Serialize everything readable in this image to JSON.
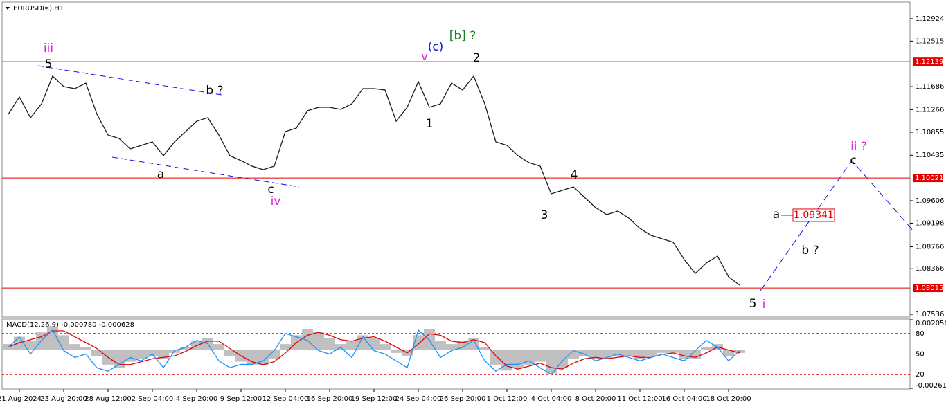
{
  "chart_data": [
    {
      "type": "line",
      "title": "EURUSD(€),H1",
      "categories": [
        null,
        "21 Aug 2024",
        null,
        null,
        null,
        "23 Aug 20:00",
        null,
        null,
        null,
        "28 Aug 12:00",
        null,
        null,
        null,
        "2 Sep 04:00",
        null,
        null,
        null,
        "4 Sep 20:00",
        null,
        null,
        null,
        "9 Sep 12:00",
        null,
        null,
        null,
        "12 Sep 04:00",
        null,
        null,
        null,
        "16 Sep 20:00",
        null,
        null,
        null,
        "19 Sep 12:00",
        null,
        null,
        null,
        "24 Sep 04:00",
        null,
        null,
        null,
        "26 Sep 20:00",
        null,
        null,
        null,
        "1 Oct 12:00",
        null,
        null,
        null,
        "4 Oct 04:00",
        null,
        null,
        null,
        "8 Oct 20:00",
        null,
        null,
        null,
        "11 Oct 12:00",
        null,
        null,
        null,
        "16 Oct 04:00",
        null,
        null,
        null,
        "18 Oct 20:00",
        null
      ],
      "series": [
        {
          "color": "#1a1a1a",
          "values": [
            1.11182,
            1.11498,
            1.11119,
            1.11372,
            1.11876,
            1.11687,
            1.11649,
            1.1175,
            1.11182,
            1.10804,
            1.10741,
            1.10552,
            1.10615,
            1.10678,
            1.10426,
            1.10678,
            1.10867,
            1.11056,
            1.11119,
            1.10804,
            1.10426,
            1.10337,
            1.10236,
            1.10173,
            1.10236,
            1.10867,
            1.1093,
            1.11246,
            1.11309,
            1.11309,
            1.11271,
            1.11372,
            1.11649,
            1.11649,
            1.11624,
            1.11056,
            1.11309,
            1.11775,
            1.11309,
            1.11372,
            1.1175,
            1.11624,
            1.11876,
            1.11372,
            1.10678,
            1.10615,
            1.10426,
            1.10299,
            1.10236,
            1.09732,
            1.09795,
            1.09858,
            1.09669,
            1.09479,
            1.09353,
            1.09416,
            1.0929,
            1.09101,
            1.08975,
            1.08912,
            1.08849,
            1.08533,
            1.08281,
            1.0847,
            1.08596,
            1.08218,
            1.08066
          ]
        }
      ],
      "ylim": [
        1.07486,
        1.13201
      ],
      "yticks": [
        1.12924,
        1.12515,
        1.11686,
        1.11266,
        1.10855,
        1.10435,
        1.09606,
        1.09196,
        1.08766,
        1.08366,
        1.07536
      ],
      "levels": [
        1.12139,
        1.10021,
        1.08015
      ],
      "level_color": "#e00000",
      "price_label": 1.09341,
      "annotations": [
        {
          "text": "iii",
          "color": "#e020e0"
        },
        {
          "text": "5",
          "color": "#000000"
        },
        {
          "text": "b ?",
          "color": "#000000"
        },
        {
          "text": "a",
          "color": "#000000"
        },
        {
          "text": "c",
          "color": "#000000"
        },
        {
          "text": "iv",
          "color": "#e020e0"
        },
        {
          "text": "v",
          "color": "#e020e0"
        },
        {
          "text": "(c)",
          "color": "#1010e0"
        },
        {
          "text": "[b] ?",
          "color": "#208020"
        },
        {
          "text": "2",
          "color": "#000000"
        },
        {
          "text": "1",
          "color": "#000000"
        },
        {
          "text": "3",
          "color": "#000000"
        },
        {
          "text": "4",
          "color": "#000000"
        },
        {
          "text": "5",
          "color": "#000000"
        },
        {
          "text": "i",
          "color": "#e020e0"
        },
        {
          "text": "a",
          "color": "#000000"
        },
        {
          "text": "b ?",
          "color": "#000000"
        },
        {
          "text": "c",
          "color": "#000000"
        },
        {
          "text": "ii ?",
          "color": "#e020e0"
        }
      ]
    },
    {
      "type": "macd",
      "label": "MACD(12,26,9) -0.000780 -0.000628",
      "ylim": [
        -0.002611,
        0.002056
      ],
      "yticks": [
        -0.002611,
        0.002056
      ],
      "y2lim": [
        0,
        100
      ],
      "y2ticks": [
        20,
        50,
        80
      ],
      "level_color": "#e00000",
      "series": [
        {
          "kind": "histogram",
          "color": "#c0c0c0",
          "values": [
            0.0004,
            0.0009,
            0.0006,
            0.0012,
            0.0016,
            0.001,
            0.0004,
            0.0002,
            -0.0004,
            -0.001,
            -0.0012,
            -0.0008,
            -0.0006,
            -0.0004,
            -0.0006,
            -0.0002,
            0.0002,
            0.0006,
            0.0008,
            0.0004,
            -0.0004,
            -0.0008,
            -0.001,
            -0.001,
            -0.0006,
            0.0004,
            0.001,
            0.0014,
            0.0012,
            0.0008,
            0.0004,
            0.0006,
            0.001,
            0.0008,
            0.0004,
            -0.0002,
            -0.0004,
            0.001,
            0.0014,
            0.0006,
            0.0004,
            0.0006,
            0.0008,
            0.0002,
            -0.001,
            -0.0014,
            -0.0012,
            -0.001,
            -0.0008,
            -0.0016,
            -0.0012,
            -0.0006,
            -0.0004,
            -0.0006,
            -0.0006,
            -0.0004,
            -0.0004,
            -0.0006,
            -0.0004,
            -0.0002,
            -0.0002,
            -0.0006,
            -0.0006,
            0.0002,
            0.0004,
            -0.0004,
            -0.0002
          ]
        },
        {
          "color": "#e00000",
          "values": [
            0.0002,
            0.0005,
            0.0007,
            0.0009,
            0.0013,
            0.0013,
            0.0009,
            0.0005,
            0.0001,
            -0.0005,
            -0.001,
            -0.001,
            -0.0008,
            -0.0006,
            -0.0005,
            -0.0004,
            -0.0001,
            0.0003,
            0.0006,
            0.0006,
            0.0001,
            -0.0004,
            -0.0008,
            -0.001,
            -0.0008,
            -0.0002,
            0.0005,
            0.001,
            0.0012,
            0.001,
            0.0007,
            0.0006,
            0.0008,
            0.0009,
            0.0006,
            0.0002,
            -0.0002,
            0.0004,
            0.0011,
            0.001,
            0.0006,
            0.0005,
            0.0007,
            0.0005,
            -0.0004,
            -0.0011,
            -0.0013,
            -0.0011,
            -0.0009,
            -0.0012,
            -0.0013,
            -0.0009,
            -0.0006,
            -0.0005,
            -0.0006,
            -0.0005,
            -0.0004,
            -0.0005,
            -0.0005,
            -0.0003,
            -0.0002,
            -0.0004,
            -0.0005,
            -0.0002,
            0.0002,
            0,
            -0.0002
          ]
        },
        {
          "color": "#1e90ff",
          "axis": "y2",
          "values": [
            60,
            75,
            50,
            70,
            85,
            55,
            45,
            50,
            30,
            25,
            35,
            45,
            40,
            50,
            30,
            55,
            60,
            70,
            65,
            40,
            30,
            35,
            35,
            40,
            55,
            80,
            75,
            70,
            55,
            50,
            60,
            45,
            75,
            55,
            50,
            40,
            30,
            85,
            70,
            45,
            55,
            60,
            70,
            40,
            25,
            35,
            35,
            40,
            30,
            20,
            40,
            55,
            50,
            40,
            45,
            50,
            45,
            40,
            45,
            50,
            45,
            40,
            55,
            70,
            60,
            40,
            55
          ]
        }
      ]
    }
  ]
}
